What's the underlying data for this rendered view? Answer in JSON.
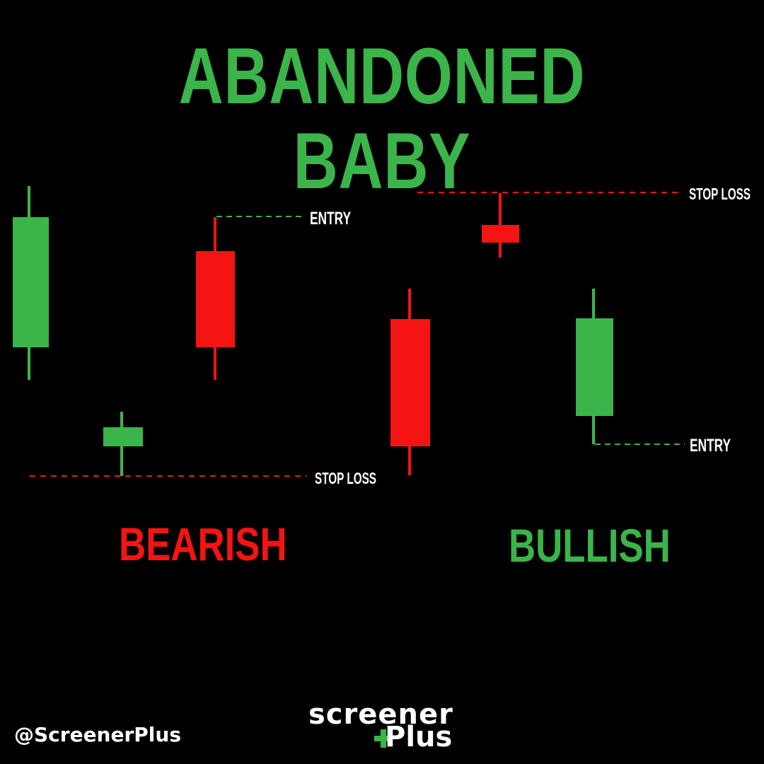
{
  "title": "ABANDONED BABY",
  "colors": {
    "background": "#000000",
    "bullish": "#3bb54a",
    "bearish": "#f41414",
    "text": "#ffffff"
  },
  "panels": {
    "bearish": {
      "label": "BEARISH",
      "color": "#f41414",
      "entry_label": "ENTRY",
      "stop_label": "STOP LOSS"
    },
    "bullish": {
      "label": "BULLISH",
      "color": "#3bb54a",
      "entry_label": "ENTRY",
      "stop_label": "STOP LOSS"
    }
  },
  "footer": {
    "handle": "@ScreenerPlus",
    "logo_top": "screener",
    "logo_bottom": "Plus"
  }
}
